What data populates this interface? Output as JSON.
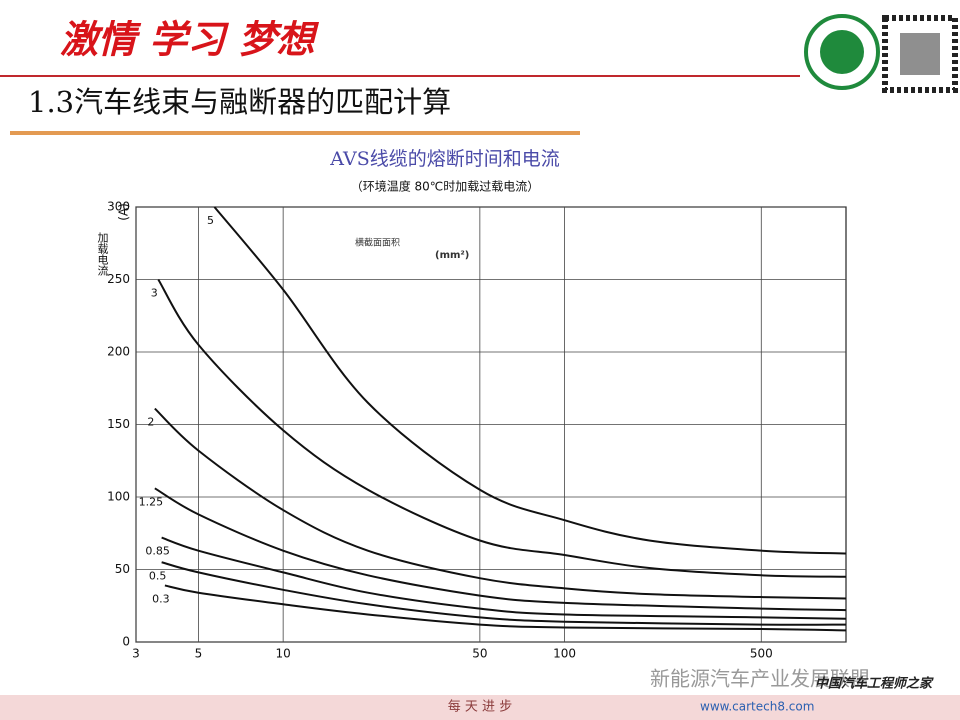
{
  "header": {
    "slogan": "激情 学习 梦想",
    "section_title": "1.3汽车线束与融断器的匹配计算"
  },
  "chart_data": {
    "type": "line",
    "title": "AVS线缆的熔断时间和电流",
    "subtitle": "（环境温度 80℃时加载过载电流）",
    "y_label": "加载电流",
    "y_unit": "(A)",
    "annotation": "横截面面积",
    "annotation_unit": "(mm²)",
    "x_scale": "log",
    "grid": true,
    "color": "#111111",
    "xlim": [
      3,
      1000
    ],
    "xticks": [
      3,
      5,
      10,
      50,
      100,
      500
    ],
    "ylim": [
      0,
      300
    ],
    "yticks": [
      0,
      50,
      100,
      150,
      200,
      250,
      300
    ],
    "series": [
      {
        "name": "5",
        "x": [
          5.7,
          10,
          20,
          50,
          100,
          200,
          500,
          1000
        ],
        "values": [
          300,
          243,
          165,
          105,
          84,
          70,
          63,
          61
        ]
      },
      {
        "name": "3",
        "x": [
          3.6,
          5,
          10,
          20,
          50,
          100,
          200,
          500,
          1000
        ],
        "values": [
          250,
          205,
          146,
          105,
          70,
          60,
          51,
          46,
          45
        ]
      },
      {
        "name": "2",
        "x": [
          3.5,
          5,
          10,
          20,
          50,
          100,
          200,
          500,
          1000
        ],
        "values": [
          161,
          132,
          91,
          63,
          44,
          37,
          33,
          31,
          30
        ]
      },
      {
        "name": "1.25",
        "x": [
          3.5,
          5,
          10,
          20,
          50,
          100,
          500,
          1000
        ],
        "values": [
          106,
          88,
          63,
          46,
          32,
          27,
          23,
          22
        ]
      },
      {
        "name": "0.85",
        "x": [
          3.7,
          5,
          10,
          20,
          50,
          100,
          500,
          1000
        ],
        "values": [
          72,
          63,
          48,
          34,
          23,
          19,
          17,
          16
        ]
      },
      {
        "name": "0.5",
        "x": [
          3.7,
          5,
          10,
          20,
          50,
          100,
          500,
          1000
        ],
        "values": [
          55,
          48,
          36,
          26,
          17,
          14,
          12,
          12
        ]
      },
      {
        "name": "0.3",
        "x": [
          3.8,
          5,
          10,
          20,
          50,
          100,
          500,
          1000
        ],
        "values": [
          39,
          34,
          26,
          19,
          12,
          10,
          9,
          8
        ]
      }
    ]
  },
  "watermark": {
    "wechat": "新能源汽车产业发展联盟",
    "site_name": "中国汽车工程师之家",
    "url": "www.cartech8.com",
    "footer": "每 天 进 步"
  }
}
